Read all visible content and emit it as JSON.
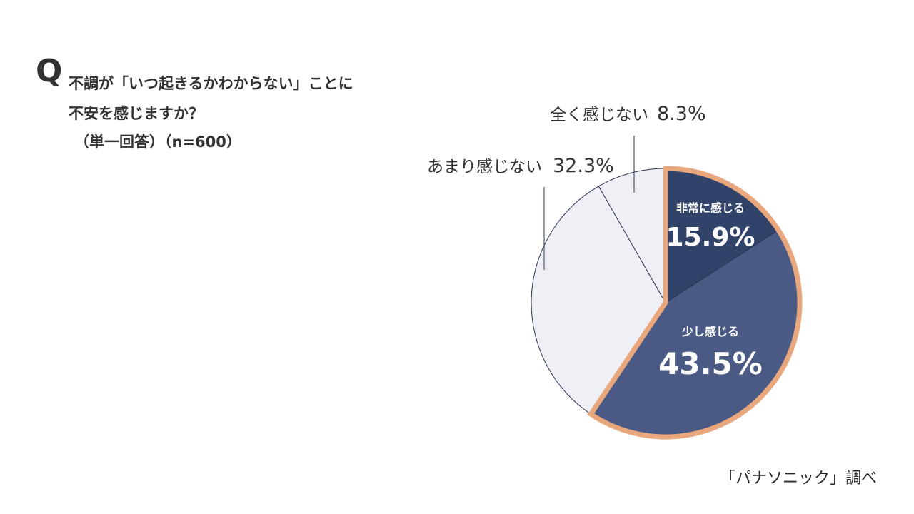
{
  "question": {
    "mark": "Q",
    "line1": "不調が「いつ起きるかわからない」ことに",
    "line2": "不安を感じますか？",
    "note": "（単一回答）（n=600）"
  },
  "source": "「パナソニック」調べ",
  "colors": {
    "very": "#32436a",
    "somewhat": "#4a5a85",
    "not_much": "#eff0f5",
    "not_at_all": "#eff0f5",
    "highlight": "#e9a77d",
    "outline": "#2b3552"
  },
  "chart_data": {
    "type": "pie",
    "title": "",
    "slices": [
      {
        "label": "非常に感じる",
        "value": 15.9,
        "display": "15.9%"
      },
      {
        "label": "少し感じる",
        "value": 43.5,
        "display": "43.5%"
      },
      {
        "label": "あまり感じない",
        "value": 32.3,
        "display": "32.3%"
      },
      {
        "label": "全く感じない",
        "value": 8.3,
        "display": "8.3%"
      }
    ]
  }
}
